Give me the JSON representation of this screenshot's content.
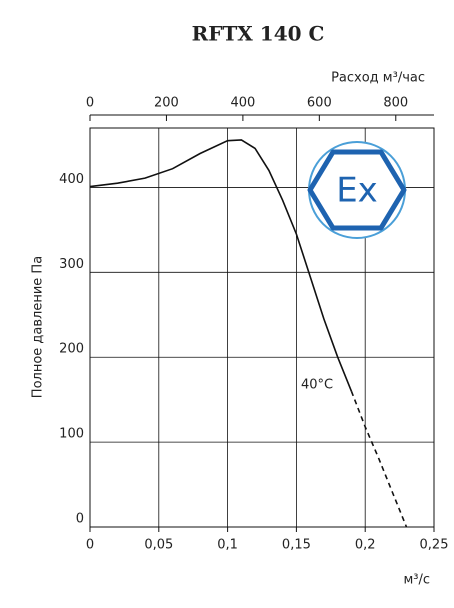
{
  "chart_data": {
    "type": "line",
    "title": "RFTX 140 C",
    "x_label": "м³/с",
    "x2_label": "Расход м³/час",
    "y_label": "Полное давление Па",
    "xlim": [
      0,
      0.25
    ],
    "xticks": [
      0,
      {
        "value": 0.05,
        "label": "0,05"
      },
      {
        "value": 0.1,
        "label": "0,1"
      },
      {
        "value": 0.15,
        "label": "0,15"
      },
      {
        "value": 0.2,
        "label": "0,2"
      },
      {
        "value": 0.25,
        "label": "0,25"
      }
    ],
    "x2lim": [
      0,
      900
    ],
    "x2ticks": [
      0,
      200,
      400,
      600,
      800
    ],
    "ylim": [
      0,
      470
    ],
    "yticks": [
      0,
      100,
      200,
      300,
      400
    ],
    "grid": true,
    "series": [
      {
        "color": "#111111",
        "dash": false,
        "x": [
          0,
          0.02,
          0.04,
          0.06,
          0.08,
          0.1,
          0.11,
          0.12,
          0.13,
          0.14,
          0.15,
          0.16,
          0.17,
          0.18,
          0.19
        ],
        "values": [
          401,
          405,
          411,
          422,
          440,
          455,
          456,
          446,
          420,
          385,
          345,
          295,
          245,
          200,
          160
        ]
      },
      {
        "color": "#111111",
        "dash": true,
        "x": [
          0.19,
          0.2,
          0.21,
          0.22,
          0.23
        ],
        "values": [
          160,
          118,
          80,
          40,
          0
        ]
      }
    ],
    "annotation": {
      "text": "40°C",
      "x": 0.165,
      "y": 160
    },
    "logo_text": "Εx"
  }
}
